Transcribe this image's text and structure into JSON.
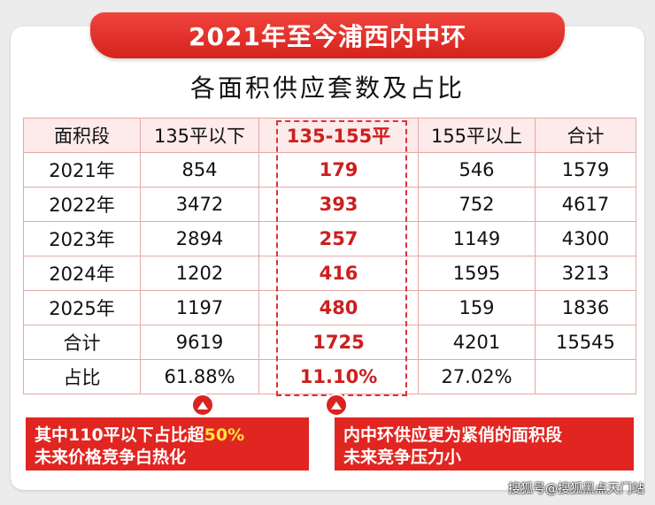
{
  "banner": {
    "title": "2021年至今浦西内中环"
  },
  "subtitle": "各面积供应套数及占比",
  "table": {
    "headers": [
      "面积段",
      "135平以下",
      "135-155平",
      "155平以上",
      "合计"
    ],
    "rows": [
      [
        "2021年",
        "854",
        "179",
        "546",
        "1579"
      ],
      [
        "2022年",
        "3472",
        "393",
        "752",
        "4617"
      ],
      [
        "2023年",
        "2894",
        "257",
        "1149",
        "4300"
      ],
      [
        "2024年",
        "1202",
        "416",
        "1595",
        "3213"
      ],
      [
        "2025年",
        "1197",
        "480",
        "159",
        "1836"
      ],
      [
        "合计",
        "9619",
        "1725",
        "4201",
        "15545"
      ],
      [
        "占比",
        "61.88%",
        "11.10%",
        "27.02%",
        ""
      ]
    ]
  },
  "callouts": {
    "left": {
      "line1_prefix": "其中110平以下占比超",
      "line1_highlight": "50%",
      "line2": "未来价格竞争白热化"
    },
    "right": {
      "line1": "内中环供应更为紧俏的面积段",
      "line2": "未来竞争压力小"
    }
  },
  "watermark": "搜狐号@搜狐黑点天门站",
  "colors": {
    "accent": "#d9231f",
    "highlight_text": "#ffe43a",
    "table_border": "#e5a8a8",
    "header_bg": "#fdeaea"
  }
}
